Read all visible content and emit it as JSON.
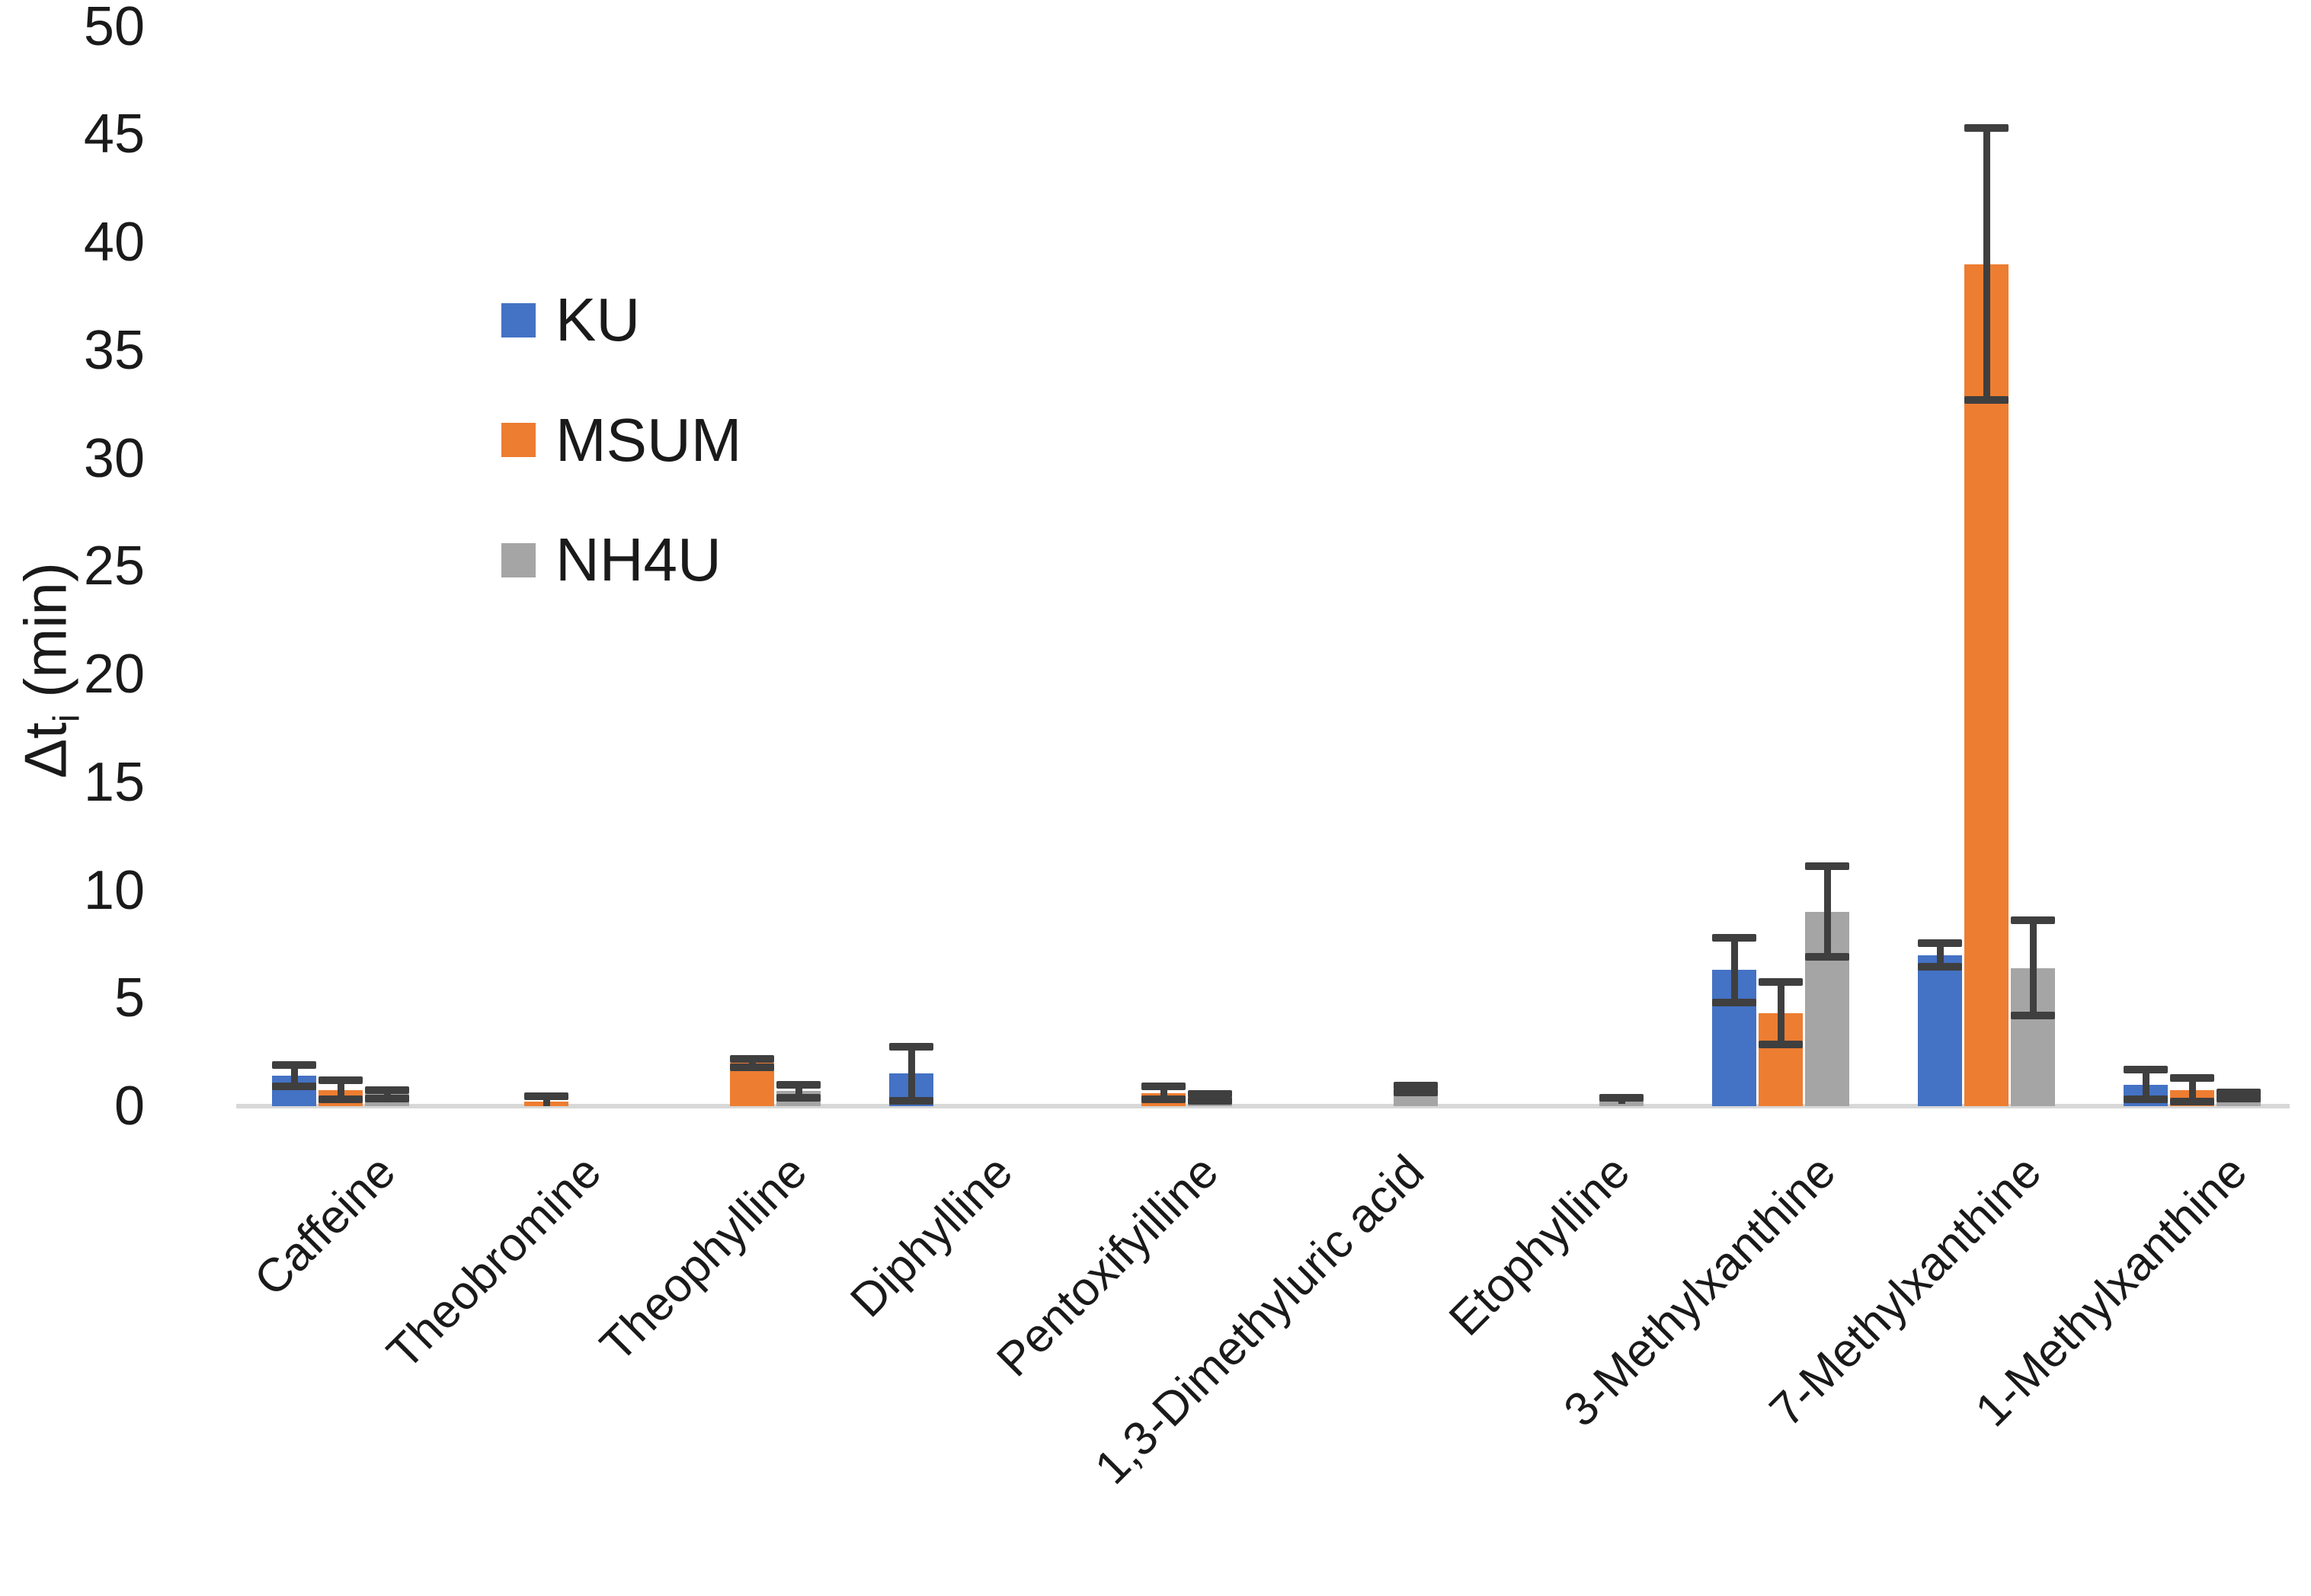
{
  "figure": {
    "background": "#ffffff",
    "axis_line_color": "#d8d8d8",
    "error_bar_color": "#3f3f3f",
    "text_color": "#1a1a1a"
  },
  "y_axis": {
    "label_prefix": "Δt",
    "label_sub": "i",
    "label_suffix": " (min)",
    "min": 0,
    "max": 50,
    "step": 5
  },
  "legend": {
    "items": [
      {
        "label": "KU",
        "color": "#4472C4"
      },
      {
        "label": "MSUM",
        "color": "#ED7D31"
      },
      {
        "label": "NH4U",
        "color": "#A5A5A5"
      }
    ]
  },
  "chart_data": {
    "type": "bar",
    "title": "",
    "xlabel": "",
    "ylabel": "Δtᵢ (min)",
    "ylim": [
      0,
      50
    ],
    "ytick_step": 5,
    "grid": false,
    "legend_position": "upper-left-inside",
    "categories": [
      "Caffeine",
      "Theobromine",
      "Theophylline",
      "Diphylline",
      "Pentoxifyilline",
      "1,3-Dimethyluric acid",
      "Etophylline",
      "3-Methylxanthine",
      "7-Methylxanthine",
      "1-Methylxanthine"
    ],
    "series": [
      {
        "name": "KU",
        "color": "#4472C4",
        "values": [
          1.4,
          0,
          0,
          1.5,
          0,
          0,
          0,
          6.3,
          7.0,
          1.0
        ],
        "errors": [
          0.5,
          0,
          0,
          1.25,
          0,
          0,
          0,
          1.5,
          0.55,
          0.7
        ]
      },
      {
        "name": "MSUM",
        "color": "#ED7D31",
        "values": [
          0.75,
          0.2,
          2.0,
          0,
          0.6,
          0,
          0,
          4.3,
          39.0,
          0.75
        ],
        "errors": [
          0.45,
          0.25,
          0.2,
          0,
          0.3,
          0,
          0,
          1.45,
          6.3,
          0.55
        ]
      },
      {
        "name": "NH4U",
        "color": "#A5A5A5",
        "values": [
          0.55,
          0,
          0.7,
          0,
          0.4,
          0.8,
          0.25,
          9.0,
          6.4,
          0.5
        ],
        "errors": [
          0.2,
          0,
          0.3,
          0,
          0.15,
          0.15,
          0.15,
          2.1,
          2.2,
          0.15
        ]
      }
    ]
  }
}
